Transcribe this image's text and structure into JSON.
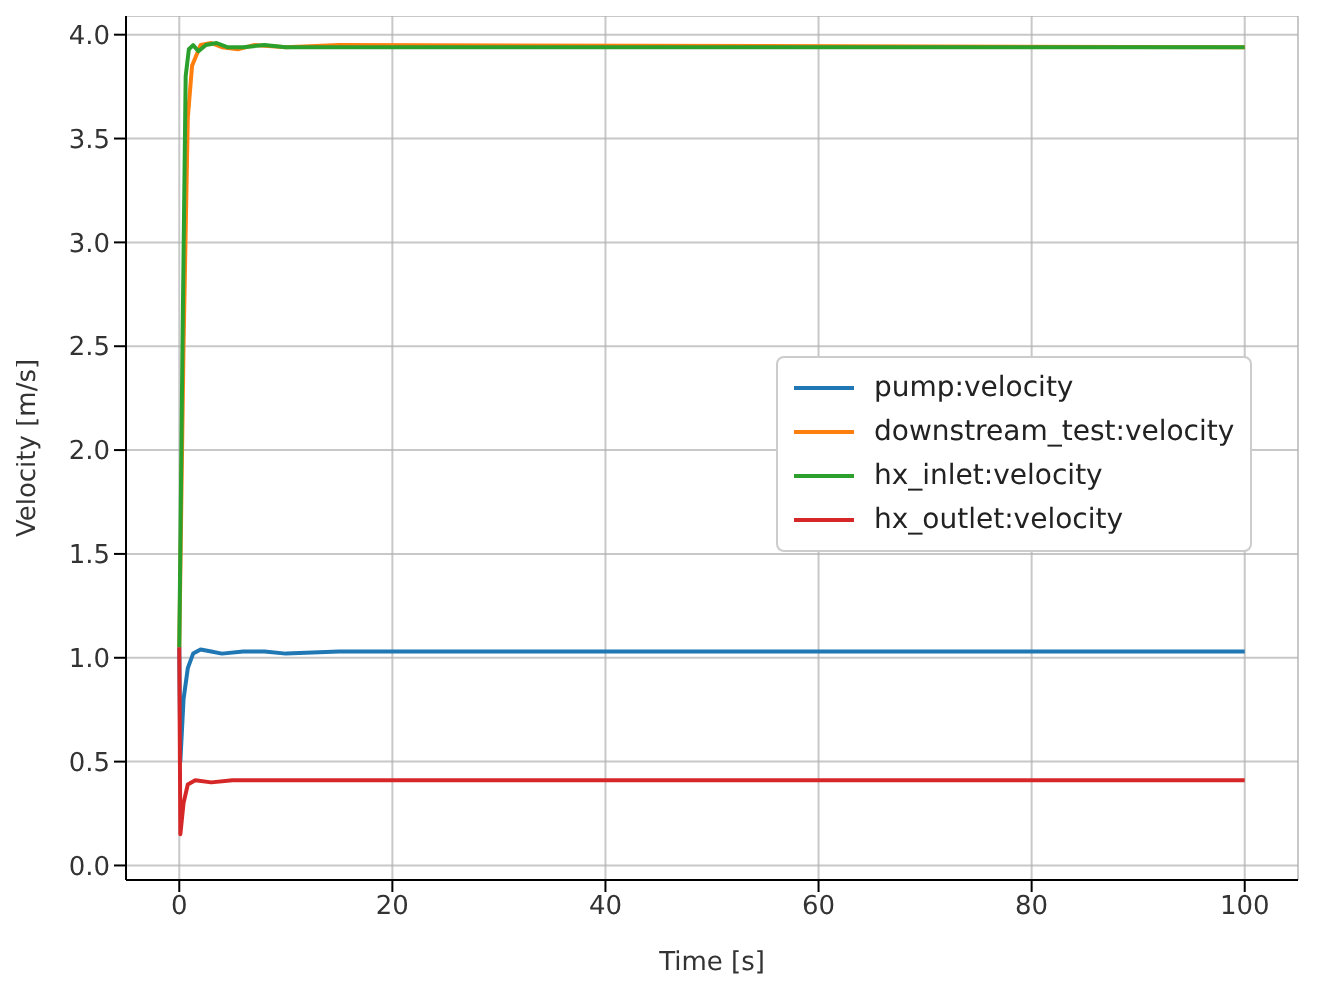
{
  "chart_data": {
    "type": "line",
    "xlabel": "Time [s]",
    "ylabel": "Velocity [m/s]",
    "xlim": [
      -5,
      105
    ],
    "ylim": [
      -0.07,
      4.09
    ],
    "xticks": [
      0,
      20,
      40,
      60,
      80,
      100
    ],
    "yticks": [
      {
        "value": 0,
        "label": "0.0"
      },
      0.5,
      {
        "value": 1,
        "label": "1.0"
      },
      1.5,
      {
        "value": 2,
        "label": "2.0"
      },
      2.5,
      {
        "value": 3,
        "label": "3.0"
      },
      3.5,
      {
        "value": 4,
        "label": "4.0"
      }
    ],
    "grid": true,
    "legend": "right",
    "marker": "none",
    "line_style": "solid",
    "series": [
      {
        "name": "pump:velocity",
        "color": "#1f77b4",
        "x": [
          0,
          0.1,
          0.4,
          0.8,
          1.3,
          2,
          3,
          4,
          6,
          8,
          10,
          15,
          100
        ],
        "values": [
          1.05,
          0.5,
          0.8,
          0.95,
          1.02,
          1.04,
          1.03,
          1.02,
          1.03,
          1.03,
          1.02,
          1.03,
          1.03
        ]
      },
      {
        "name": "downstream_test:velocity",
        "color": "#ff7f0e",
        "x": [
          0,
          0.4,
          0.8,
          1.2,
          2,
          3,
          4,
          5.5,
          7,
          10,
          15,
          100
        ],
        "values": [
          1.05,
          2.5,
          3.6,
          3.85,
          3.95,
          3.96,
          3.94,
          3.93,
          3.95,
          3.94,
          3.95,
          3.94
        ]
      },
      {
        "name": "hx_inlet:velocity",
        "color": "#2ca02c",
        "x": [
          0,
          0.3,
          0.6,
          0.9,
          1.3,
          1.8,
          2.5,
          3.5,
          4.5,
          6,
          8,
          10,
          15,
          20,
          100
        ],
        "values": [
          1.05,
          2.5,
          3.8,
          3.93,
          3.95,
          3.92,
          3.95,
          3.96,
          3.94,
          3.94,
          3.95,
          3.94,
          3.94,
          3.94,
          3.94
        ]
      },
      {
        "name": "hx_outlet:velocity",
        "color": "#d62728",
        "x": [
          0,
          0.1,
          0.4,
          0.8,
          1.5,
          3,
          5,
          100
        ],
        "values": [
          1.05,
          0.15,
          0.3,
          0.39,
          0.41,
          0.4,
          0.41,
          0.41
        ]
      }
    ]
  }
}
